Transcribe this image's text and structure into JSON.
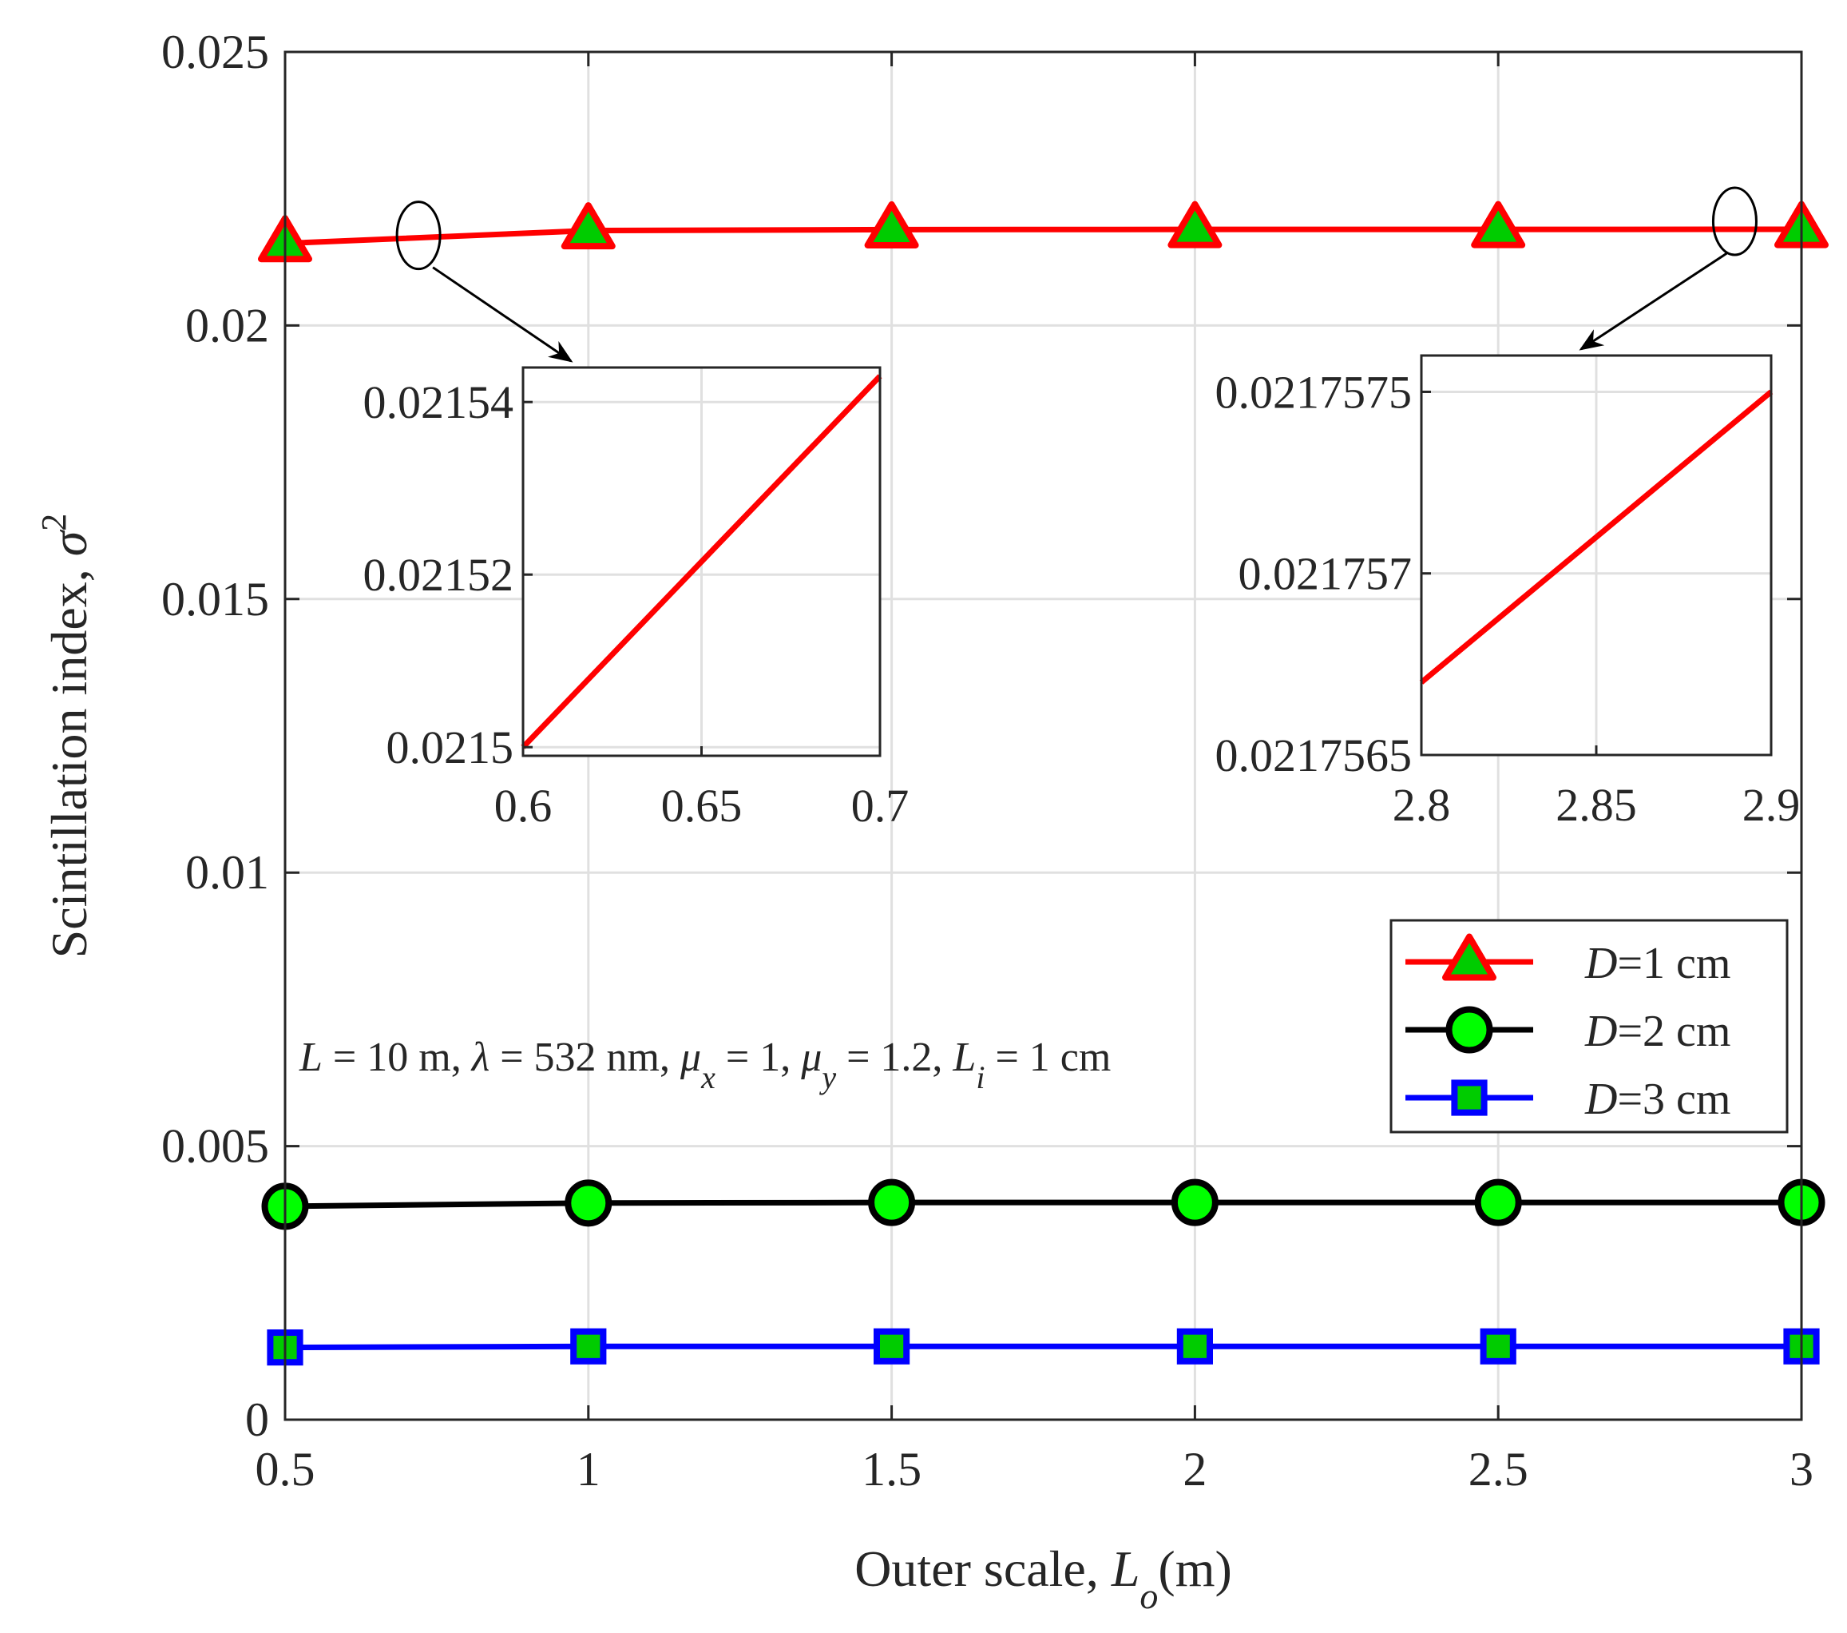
{
  "chart_data": {
    "type": "line",
    "xlabel": "Outer scale, L_o(m)",
    "xlabel_prefix": "Outer scale, ",
    "xlabel_var": "L",
    "xlabel_sub": "o",
    "xlabel_suffix": "(m)",
    "ylabel": "Scintillation index, σ²",
    "ylabel_prefix": "Scintillation index, ",
    "ylabel_var": "σ",
    "ylabel_sup": "2",
    "xlim": [
      0.5,
      3
    ],
    "ylim": [
      0,
      0.025
    ],
    "grid": true,
    "x": [
      0.5,
      1,
      1.5,
      2,
      2.5,
      3
    ],
    "x_tick_labels": [
      "0.5",
      "1",
      "1.5",
      "2",
      "2.5",
      "3"
    ],
    "y_ticks": [
      0,
      0.005,
      0.01,
      0.015,
      0.02,
      0.025
    ],
    "y_tick_labels": [
      "0",
      "0.005",
      "0.01",
      "0.015",
      "0.02",
      "0.025"
    ],
    "series": [
      {
        "name": "D=1 cm",
        "var": "D",
        "rest": "=1 cm",
        "color": "#ff0000",
        "marker": "triangle",
        "marker_fill": "#00cc00",
        "values": [
          0.0215,
          0.021735,
          0.021752,
          0.021756,
          0.021757,
          0.0217575
        ]
      },
      {
        "name": "D=2 cm",
        "var": "D",
        "rest": "=2 cm",
        "color": "#000000",
        "marker": "circle",
        "marker_fill": "#00ff00",
        "values": [
          0.0039,
          0.00396,
          0.00397,
          0.00397,
          0.00397,
          0.00397
        ]
      },
      {
        "name": "D=3 cm",
        "var": "D",
        "rest": "=3 cm",
        "color": "#0000ff",
        "marker": "square",
        "marker_fill": "#00cc00",
        "values": [
          0.00132,
          0.00134,
          0.00134,
          0.00134,
          0.00134,
          0.00134
        ]
      }
    ],
    "legend_position": "right",
    "annotation": {
      "parts": [
        {
          "t": "L",
          "style": "italic"
        },
        {
          "t": " = 10 m, ",
          "style": "normal"
        },
        {
          "t": "λ",
          "style": "italic"
        },
        {
          "t": " = 532 nm, ",
          "style": "normal"
        },
        {
          "t": "μ",
          "style": "italic"
        },
        {
          "t": "x",
          "style": "sub"
        },
        {
          "t": " = 1, ",
          "style": "normal"
        },
        {
          "t": "μ",
          "style": "italic"
        },
        {
          "t": "y",
          "style": "sub"
        },
        {
          "t": " = 1.2, ",
          "style": "normal"
        },
        {
          "t": "L",
          "style": "italic"
        },
        {
          "t": "i",
          "style": "sub"
        },
        {
          "t": " = 1 cm",
          "style": "normal"
        }
      ]
    },
    "insets": [
      {
        "name": "inset-left",
        "xlim": [
          0.6,
          0.7
        ],
        "ylim": [
          0.021499,
          0.021544
        ],
        "x_ticks": [
          0.6,
          0.65,
          0.7
        ],
        "x_tick_labels": [
          "0.6",
          "0.65",
          "0.7"
        ],
        "y_ticks": [
          0.0215,
          0.02152,
          0.02154
        ],
        "y_tick_labels": [
          "0.0215",
          "0.02152",
          "0.02154"
        ],
        "line": {
          "x": [
            0.6,
            0.7
          ],
          "y": [
            0.0215,
            0.021543
          ]
        },
        "zoom_target_x": 0.72
      },
      {
        "name": "inset-right",
        "xlim": [
          2.8,
          2.9
        ],
        "ylim": [
          0.0217565,
          0.0217576
        ],
        "x_ticks": [
          2.8,
          2.85,
          2.9
        ],
        "x_tick_labels": [
          "2.8",
          "2.85",
          "2.9"
        ],
        "y_ticks": [
          0.0217565,
          0.021757,
          0.0217575
        ],
        "y_tick_labels": [
          "0.0217565",
          "0.021757",
          "0.0217575"
        ],
        "line": {
          "x": [
            2.8,
            2.9
          ],
          "y": [
            0.0217567,
            0.0217575
          ]
        },
        "zoom_target_x": 2.89
      }
    ]
  }
}
